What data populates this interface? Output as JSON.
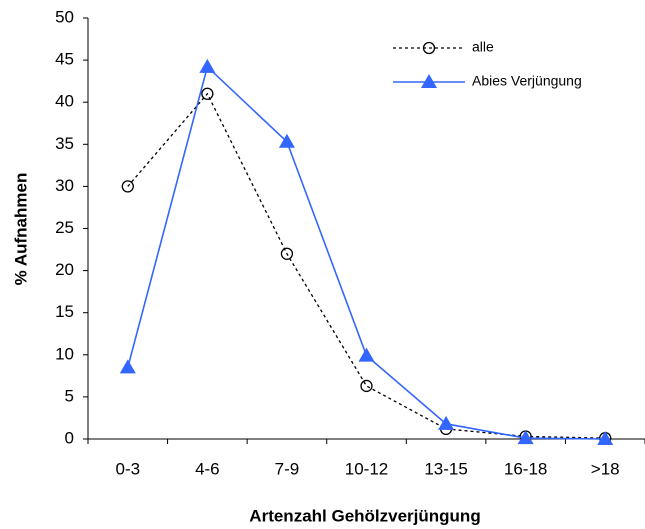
{
  "chart_data": {
    "type": "line",
    "x_label": "Artenzahl Gehölzverjüngung",
    "y_label": "% Aufnahmen",
    "categories": [
      "0-3",
      "4-6",
      "7-9",
      "10-12",
      "13-15",
      "16-18",
      ">18"
    ],
    "series": [
      {
        "name": "alle",
        "color": "#000000",
        "values": [
          30,
          41,
          22,
          6.3,
          1.2,
          0.3,
          0.1
        ]
      },
      {
        "name": "Abies Verjüngung",
        "color": "#3366ff",
        "values": [
          8.5,
          44.2,
          35.3,
          9.9,
          1.8,
          0.1,
          0
        ]
      }
    ],
    "ylim": [
      0,
      50
    ],
    "yticks": [
      0,
      5,
      10,
      15,
      20,
      25,
      30,
      35,
      40,
      45,
      50
    ],
    "legend": "upper right"
  }
}
